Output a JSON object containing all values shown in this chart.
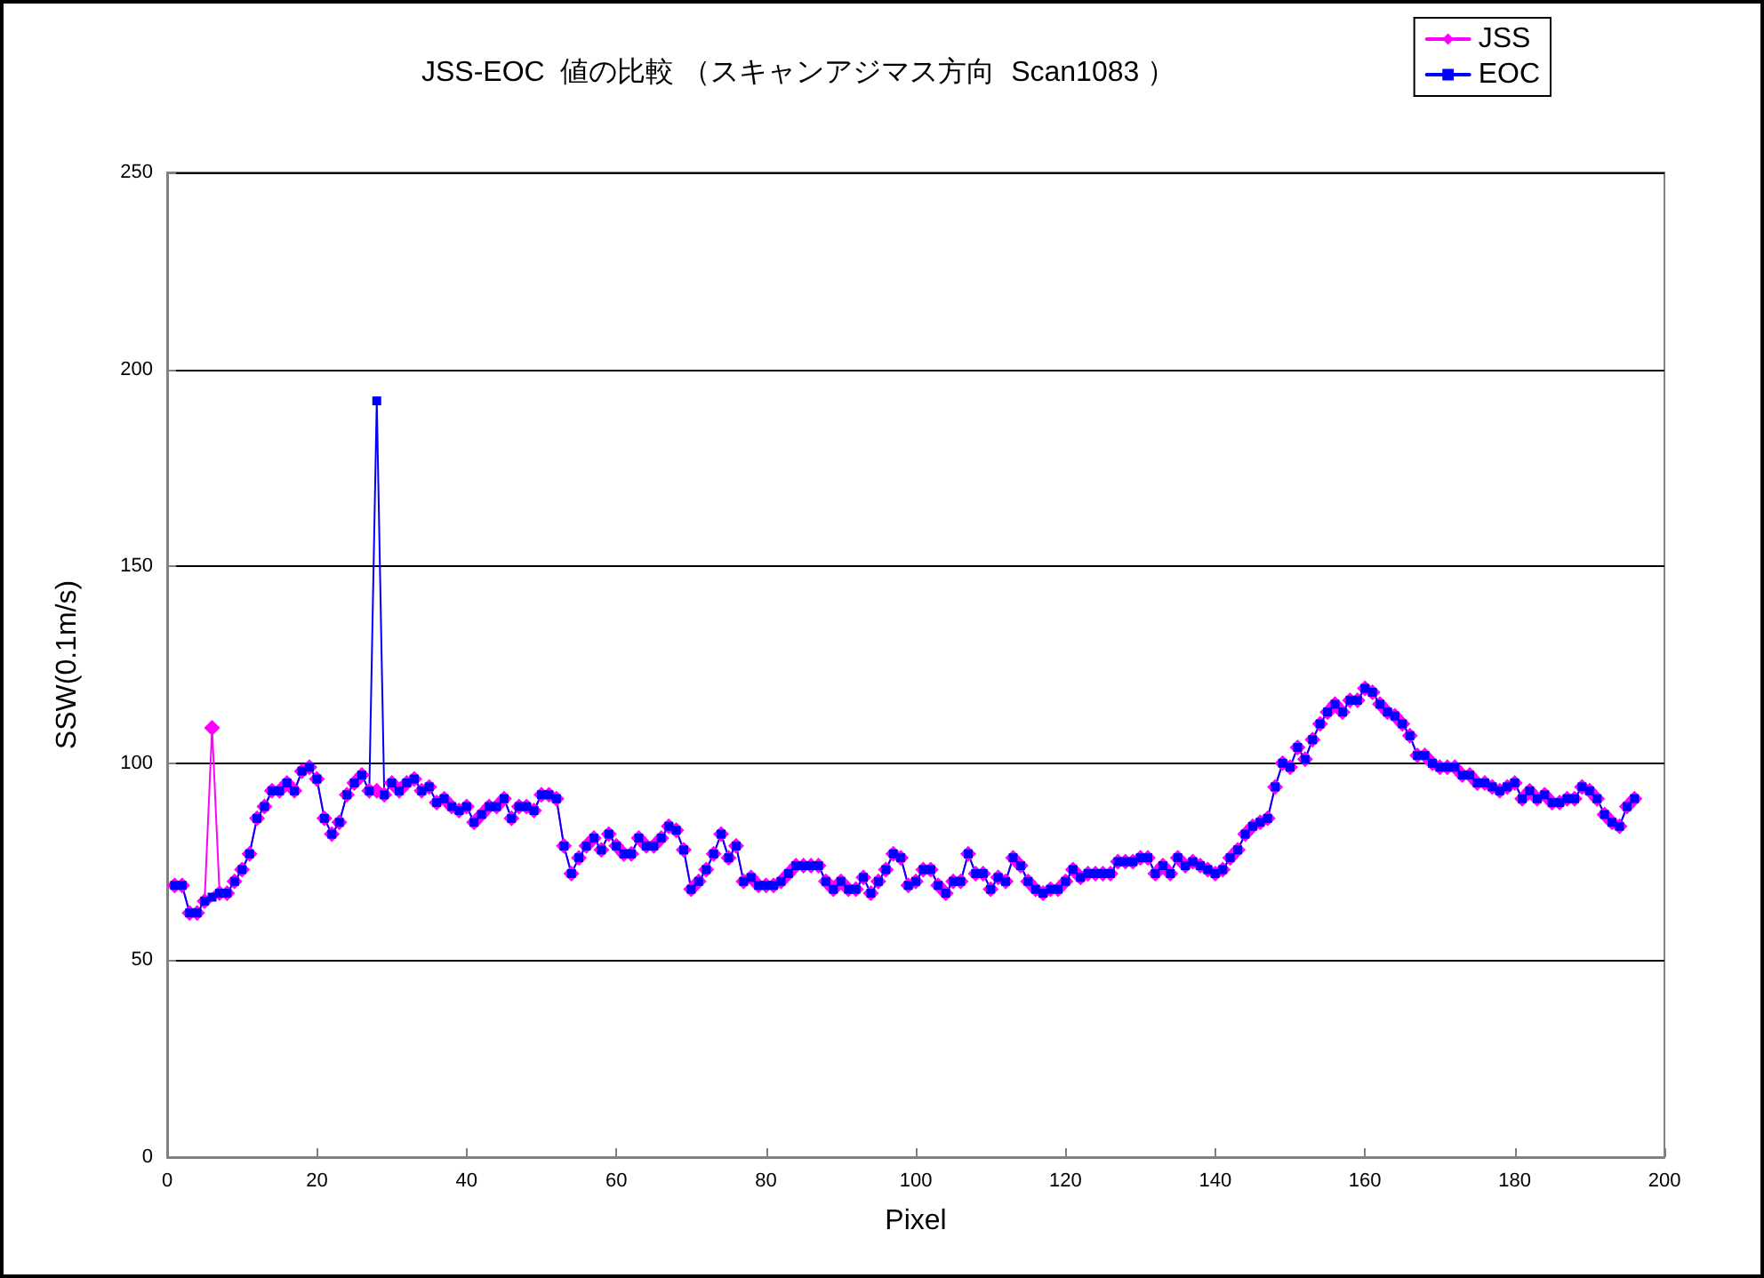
{
  "chart_data": {
    "type": "line",
    "title": "JSS-EOC  値の比較 （スキャンアジマス方向  Scan1083 ）",
    "xlabel": "Pixel",
    "ylabel": "SSW(0.1m/s)",
    "x": [
      1,
      2,
      3,
      4,
      5,
      6,
      7,
      8,
      9,
      10,
      11,
      12,
      13,
      14,
      15,
      16,
      17,
      18,
      19,
      20,
      21,
      22,
      23,
      24,
      25,
      26,
      27,
      28,
      29,
      30,
      31,
      32,
      33,
      34,
      35,
      36,
      37,
      38,
      39,
      40,
      41,
      42,
      43,
      44,
      45,
      46,
      47,
      48,
      49,
      50,
      51,
      52,
      53,
      54,
      55,
      56,
      57,
      58,
      59,
      60,
      61,
      62,
      63,
      64,
      65,
      66,
      67,
      68,
      69,
      70,
      71,
      72,
      73,
      74,
      75,
      76,
      77,
      78,
      79,
      80,
      81,
      82,
      83,
      84,
      85,
      86,
      87,
      88,
      89,
      90,
      91,
      92,
      93,
      94,
      95,
      96,
      97,
      98,
      99,
      100,
      101,
      102,
      103,
      104,
      105,
      106,
      107,
      108,
      109,
      110,
      111,
      112,
      113,
      114,
      115,
      116,
      117,
      118,
      119,
      120,
      121,
      122,
      123,
      124,
      125,
      126,
      127,
      128,
      129,
      130,
      131,
      132,
      133,
      134,
      135,
      136,
      137,
      138,
      139,
      140,
      141,
      142,
      143,
      144,
      145,
      146,
      147,
      148,
      149,
      150,
      151,
      152,
      153,
      154,
      155,
      156,
      157,
      158,
      159,
      160,
      161,
      162,
      163,
      164,
      165,
      166,
      167,
      168,
      169,
      170,
      171,
      172,
      173,
      174,
      175,
      176,
      177,
      178,
      179,
      180,
      181,
      182,
      183,
      184,
      185,
      186,
      187,
      188,
      189,
      190,
      191,
      192,
      193,
      194,
      195,
      196
    ],
    "series": [
      {
        "name": "JSS",
        "color": "#ff00ff",
        "marker": "diamond",
        "values": [
          69,
          69,
          62,
          62,
          65,
          109,
          67,
          67,
          70,
          73,
          77,
          86,
          89,
          93,
          93,
          95,
          93,
          98,
          99,
          96,
          86,
          82,
          85,
          92,
          95,
          97,
          93,
          93,
          92,
          95,
          93,
          95,
          96,
          93,
          94,
          90,
          91,
          89,
          88,
          89,
          85,
          87,
          89,
          89,
          91,
          86,
          89,
          89,
          88,
          92,
          92,
          91,
          79,
          72,
          76,
          79,
          81,
          78,
          82,
          79,
          77,
          77,
          81,
          79,
          79,
          81,
          84,
          83,
          78,
          68,
          70,
          73,
          77,
          82,
          76,
          79,
          70,
          71,
          69,
          69,
          69,
          70,
          72,
          74,
          74,
          74,
          74,
          70,
          68,
          70,
          68,
          68,
          71,
          67,
          70,
          73,
          77,
          76,
          69,
          70,
          73,
          73,
          69,
          67,
          70,
          70,
          77,
          72,
          72,
          68,
          71,
          70,
          76,
          74,
          70,
          68,
          67,
          68,
          68,
          70,
          73,
          71,
          72,
          72,
          72,
          72,
          75,
          75,
          75,
          76,
          76,
          72,
          74,
          72,
          76,
          74,
          75,
          74,
          73,
          72,
          73,
          76,
          78,
          82,
          84,
          85,
          86,
          94,
          100,
          99,
          104,
          101,
          106,
          110,
          113,
          115,
          113,
          116,
          116,
          119,
          118,
          115,
          113,
          112,
          110,
          107,
          102,
          102,
          100,
          99,
          99,
          99,
          97,
          97,
          95,
          95,
          94,
          93,
          94,
          95,
          91,
          93,
          91,
          92,
          90,
          90,
          91,
          91,
          94,
          93,
          91,
          87,
          85,
          84,
          89,
          91
        ]
      },
      {
        "name": "EOC",
        "color": "#0000ff",
        "marker": "square",
        "values": [
          69,
          69,
          62,
          62,
          65,
          66,
          67,
          67,
          70,
          73,
          77,
          86,
          89,
          93,
          93,
          95,
          93,
          98,
          99,
          96,
          86,
          82,
          85,
          92,
          95,
          97,
          93,
          192,
          92,
          95,
          93,
          95,
          96,
          93,
          94,
          90,
          91,
          89,
          88,
          89,
          85,
          87,
          89,
          89,
          91,
          86,
          89,
          89,
          88,
          92,
          92,
          91,
          79,
          72,
          76,
          79,
          81,
          78,
          82,
          79,
          77,
          77,
          81,
          79,
          79,
          81,
          84,
          83,
          78,
          68,
          70,
          73,
          77,
          82,
          76,
          79,
          70,
          71,
          69,
          69,
          69,
          70,
          72,
          74,
          74,
          74,
          74,
          70,
          68,
          70,
          68,
          68,
          71,
          67,
          70,
          73,
          77,
          76,
          69,
          70,
          73,
          73,
          69,
          67,
          70,
          70,
          77,
          72,
          72,
          68,
          71,
          70,
          76,
          74,
          70,
          68,
          67,
          68,
          68,
          70,
          73,
          71,
          72,
          72,
          72,
          72,
          75,
          75,
          75,
          76,
          76,
          72,
          74,
          72,
          76,
          74,
          75,
          74,
          73,
          72,
          73,
          76,
          78,
          82,
          84,
          85,
          86,
          94,
          100,
          99,
          104,
          101,
          106,
          110,
          113,
          115,
          113,
          116,
          116,
          119,
          118,
          115,
          113,
          112,
          110,
          107,
          102,
          102,
          100,
          99,
          99,
          99,
          97,
          97,
          95,
          95,
          94,
          93,
          94,
          95,
          91,
          93,
          91,
          92,
          90,
          90,
          91,
          91,
          94,
          93,
          91,
          87,
          85,
          84,
          89,
          91
        ]
      }
    ],
    "xlim": [
      0,
      200
    ],
    "xticks": [
      0,
      20,
      40,
      60,
      80,
      100,
      120,
      140,
      160,
      180,
      200
    ],
    "ylim": [
      0,
      250
    ],
    "yticks": [
      0,
      50,
      100,
      150,
      200,
      250
    ],
    "grid": "y",
    "legend": "top right",
    "line_style": "solid"
  }
}
